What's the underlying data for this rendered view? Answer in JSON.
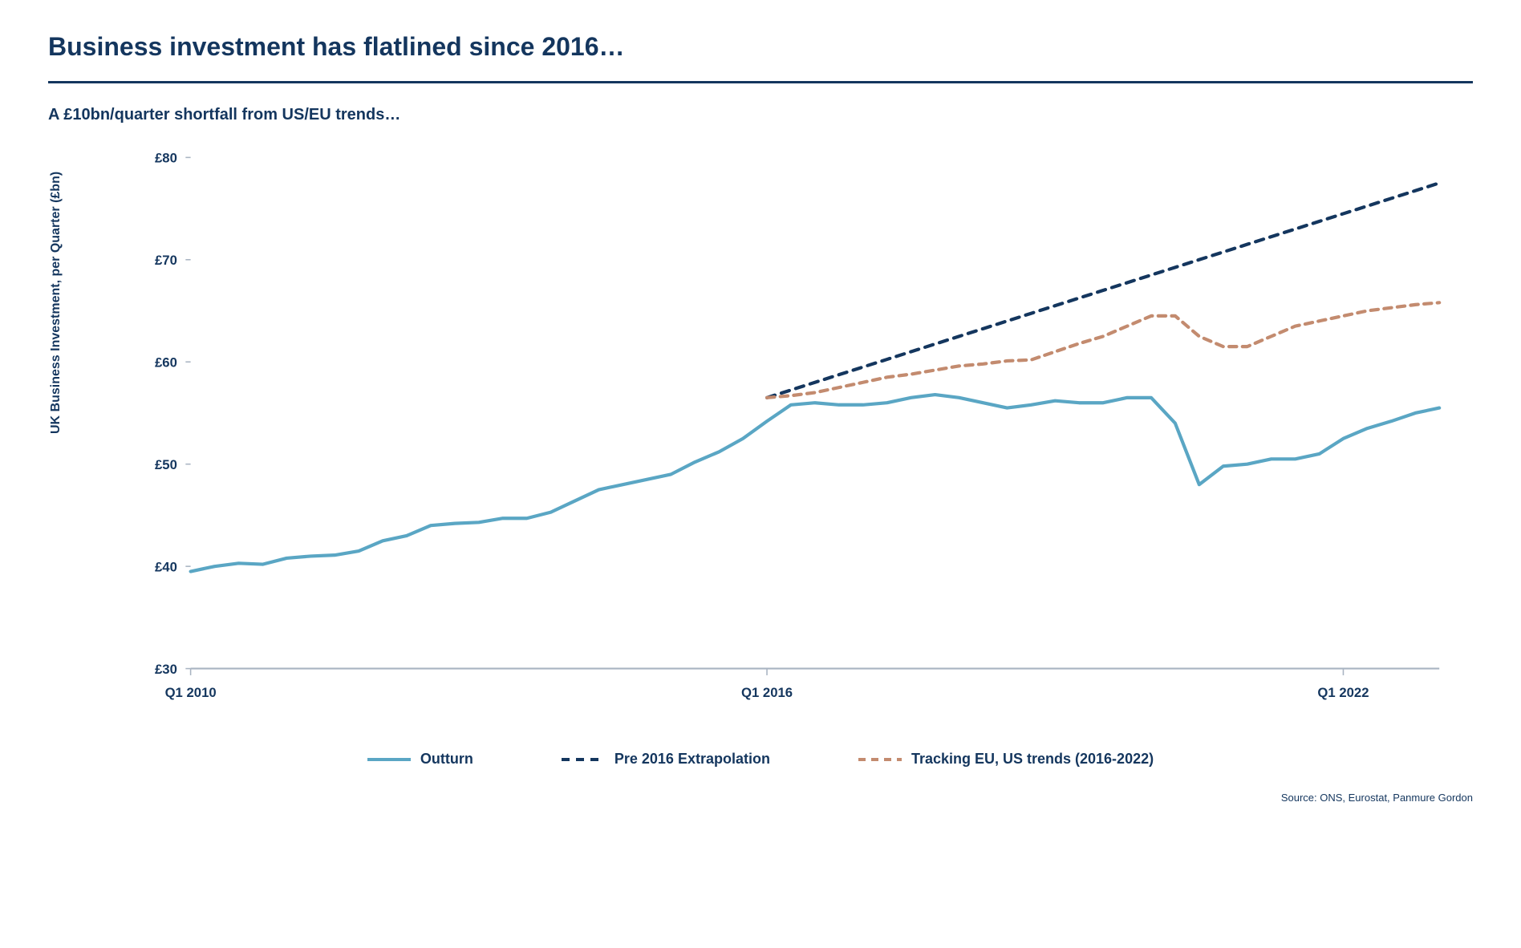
{
  "title": "Business investment has flatlined since 2016…",
  "subtitle": "A £10bn/quarter shortfall from US/EU trends…",
  "ylabel": "UK Business Investment, per Quarter (£bn)",
  "source": "Source: ONS, Eurostat, Panmure Gordon",
  "chart": {
    "type": "line",
    "background_color": "#ffffff",
    "title_color": "#14365e",
    "axis_color": "#a9b4c2",
    "ylim": [
      30,
      80
    ],
    "ytick_step": 10,
    "yticks": [
      "£30",
      "£40",
      "£50",
      "£60",
      "£70",
      "£80"
    ],
    "x_start_year": 2010,
    "x_end_year": 2023,
    "x_quarters": 53,
    "xticks": [
      {
        "index": 0,
        "label": "Q1 2010"
      },
      {
        "index": 24,
        "label": "Q1 2016"
      },
      {
        "index": 48,
        "label": "Q1 2022"
      }
    ],
    "series": {
      "outturn": {
        "label": "Outturn",
        "color": "#5aa6c4",
        "line_width": 4,
        "dash": "none",
        "values": [
          39.5,
          40.0,
          40.3,
          40.2,
          40.8,
          41.0,
          41.1,
          41.5,
          42.5,
          43.0,
          44.0,
          44.2,
          44.3,
          44.7,
          44.7,
          45.3,
          46.4,
          47.5,
          48.0,
          48.5,
          49.0,
          50.2,
          51.2,
          52.5,
          54.2,
          55.8,
          56.0,
          55.8,
          55.8,
          56.0,
          56.5,
          56.8,
          56.5,
          56.0,
          55.5,
          55.8,
          56.2,
          56.0,
          56.0,
          56.5,
          56.5,
          54.0,
          48.0,
          49.8,
          50.0,
          50.5,
          50.5,
          51.0,
          52.5,
          53.5,
          54.2,
          55.0,
          55.5
        ]
      },
      "extrapolation": {
        "label": "Pre 2016 Extrapolation",
        "color": "#14365e",
        "line_width": 4,
        "dash": "10,8",
        "start_index": 24,
        "values": [
          56.5,
          57.25,
          58.0,
          58.75,
          59.5,
          60.25,
          61.0,
          61.75,
          62.5,
          63.25,
          64.0,
          64.75,
          65.5,
          66.25,
          67.0,
          67.75,
          68.5,
          69.25,
          70.0,
          70.75,
          71.5,
          72.25,
          73.0,
          73.75,
          74.5,
          75.25,
          76.0,
          76.75,
          77.5
        ]
      },
      "tracking": {
        "label": "Tracking EU, US trends (2016-2022)",
        "color": "#c38b6f",
        "line_width": 4,
        "dash": "9,7",
        "start_index": 24,
        "values": [
          56.5,
          56.7,
          57.0,
          57.5,
          58.0,
          58.5,
          58.8,
          59.2,
          59.6,
          59.8,
          60.1,
          60.2,
          61.0,
          61.8,
          62.5,
          63.5,
          64.5,
          64.5,
          62.5,
          61.5,
          61.5,
          62.5,
          63.5,
          64.0,
          64.5,
          65.0,
          65.3,
          65.6,
          65.8
        ]
      }
    },
    "legend": [
      {
        "key": "outturn",
        "label": "Outturn"
      },
      {
        "key": "extrapolation",
        "label": "Pre 2016 Extrapolation"
      },
      {
        "key": "tracking",
        "label": "Tracking EU, US trends (2016-2022)"
      }
    ]
  }
}
